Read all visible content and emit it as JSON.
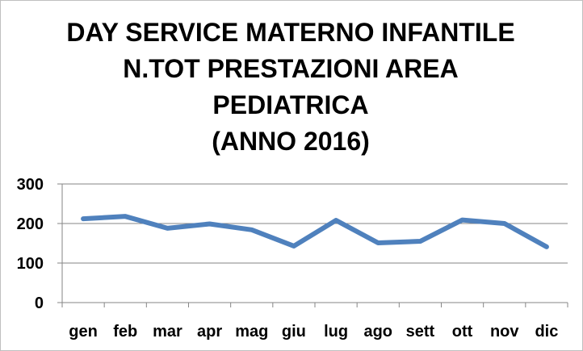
{
  "chart_data": {
    "type": "line",
    "title_lines": [
      "DAY SERVICE MATERNO INFANTILE",
      "N.TOT PRESTAZIONI AREA",
      "PEDIATRICA",
      "(ANNO 2016)"
    ],
    "categories": [
      "gen",
      "feb",
      "mar",
      "apr",
      "mag",
      "giu",
      "lug",
      "ago",
      "sett",
      "ott",
      "nov",
      "dic"
    ],
    "series": [
      {
        "values": [
          212,
          218,
          188,
          199,
          184,
          143,
          208,
          151,
          155,
          209,
          200,
          141
        ],
        "color": "#4F81BD"
      }
    ],
    "ylim": [
      0,
      300
    ],
    "yticks": [
      "0",
      "100",
      "200",
      "300"
    ],
    "grid": true,
    "legend": "none"
  }
}
